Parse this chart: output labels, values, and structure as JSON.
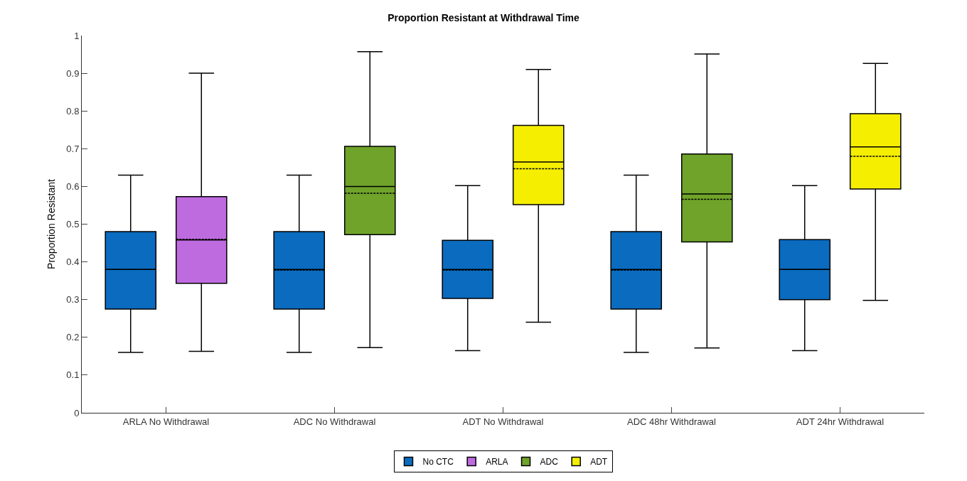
{
  "chart_data": {
    "type": "box",
    "title": "Proportion Resistant at Withdrawal Time",
    "ylabel": "Proportion Resistant",
    "categories": [
      "ARLA No Withdrawal",
      "ADC No Withdrawal",
      "ADT No Withdrawal",
      "ADC 48hr Withdrawal",
      "ADT 24hr Withdrawal"
    ],
    "series": [
      {
        "name": "No CTC",
        "color": "#0a6bbf",
        "boxes": [
          {
            "low": 0.16,
            "q1": 0.275,
            "median": 0.38,
            "q3": 0.48,
            "high": 0.63,
            "mean": 0.38
          },
          {
            "low": 0.16,
            "q1": 0.275,
            "median": 0.38,
            "q3": 0.48,
            "high": 0.63,
            "mean": 0.378
          },
          {
            "low": 0.165,
            "q1": 0.303,
            "median": 0.38,
            "q3": 0.457,
            "high": 0.602,
            "mean": 0.378
          },
          {
            "low": 0.16,
            "q1": 0.275,
            "median": 0.38,
            "q3": 0.48,
            "high": 0.63,
            "mean": 0.378
          },
          {
            "low": 0.165,
            "q1": 0.3,
            "median": 0.38,
            "q3": 0.459,
            "high": 0.602,
            "mean": 0.38
          }
        ]
      },
      {
        "name": "ARLA",
        "color": "#bf6be0",
        "boxes": [
          {
            "low": 0.163,
            "q1": 0.343,
            "median": 0.458,
            "q3": 0.573,
            "high": 0.9,
            "mean": 0.46
          },
          null,
          null,
          null,
          null
        ]
      },
      {
        "name": "ADC",
        "color": "#6fa32a",
        "boxes": [
          null,
          {
            "low": 0.173,
            "q1": 0.472,
            "median": 0.6,
            "q3": 0.706,
            "high": 0.957,
            "mean": 0.582
          },
          null,
          {
            "low": 0.172,
            "q1": 0.453,
            "median": 0.58,
            "q3": 0.686,
            "high": 0.951,
            "mean": 0.566
          },
          null
        ]
      },
      {
        "name": "ADT",
        "color": "#f5ee00",
        "boxes": [
          null,
          null,
          {
            "low": 0.24,
            "q1": 0.552,
            "median": 0.665,
            "q3": 0.762,
            "high": 0.91,
            "mean": 0.647
          },
          null,
          {
            "low": 0.298,
            "q1": 0.593,
            "median": 0.705,
            "q3": 0.793,
            "high": 0.926,
            "mean": 0.68
          }
        ]
      }
    ],
    "ylim": [
      0,
      1
    ],
    "yticks": [
      0,
      0.1,
      0.2,
      0.3,
      0.4,
      0.5,
      0.6,
      0.7,
      0.8,
      0.9,
      1
    ],
    "grid": false,
    "legend": "bottom"
  }
}
